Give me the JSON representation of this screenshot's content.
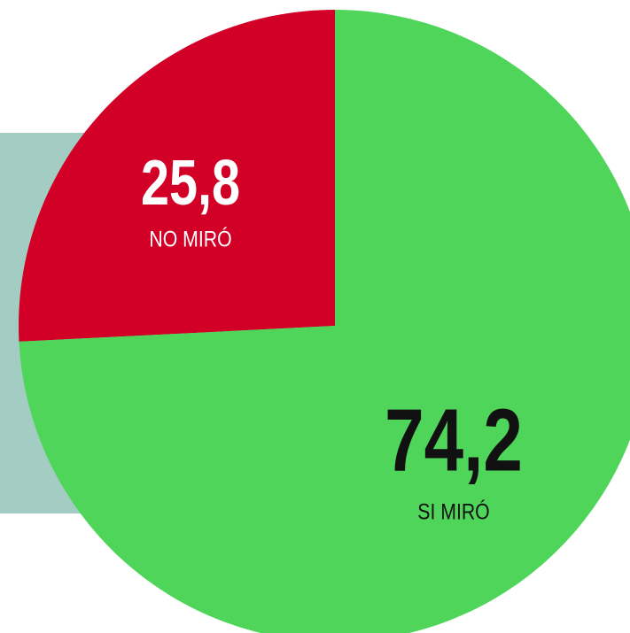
{
  "chart_data": {
    "type": "pie",
    "categories": [
      "NO MIRÓ",
      "SI MIRÓ"
    ],
    "values": [
      25.8,
      74.2
    ],
    "value_labels": [
      "25,8",
      "74,2"
    ],
    "colors": [
      "#d20027",
      "#4fd65a"
    ]
  }
}
